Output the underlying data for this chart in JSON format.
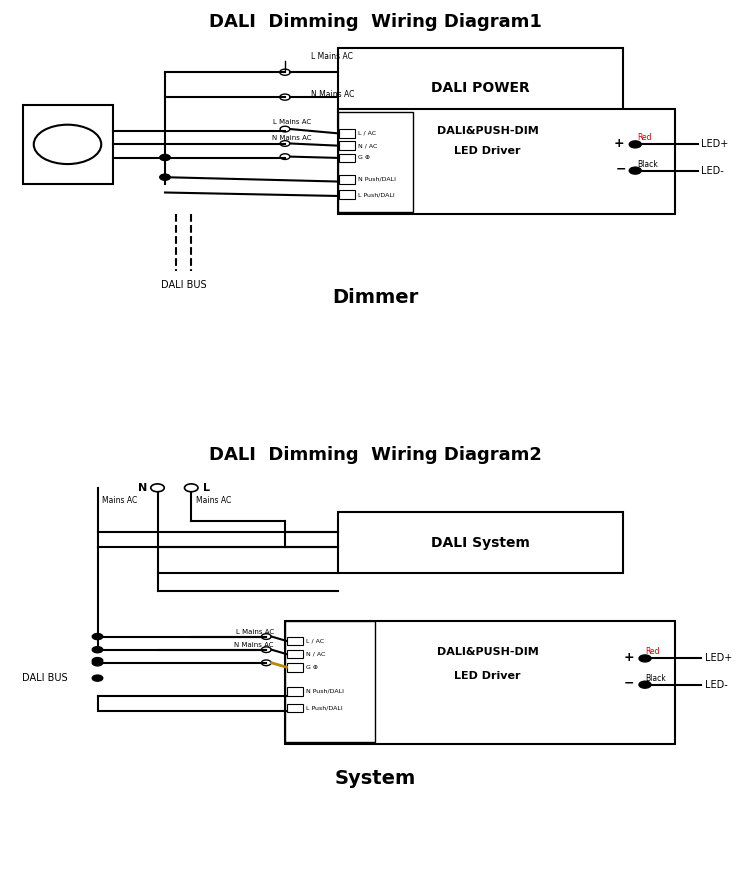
{
  "title1": "DALI  Dimming  Wiring Diagram1",
  "title2": "DALI  Dimming  Wiring Diagram2",
  "subtitle1": "Dimmer",
  "subtitle2": "System",
  "bg_color": "#ffffff",
  "line_color": "#000000",
  "box_color": "#000000",
  "red_color": "#cc0000",
  "gold_color": "#b8860b",
  "dali_bus_label": "DALI BUS",
  "led_plus": "LED+",
  "led_minus": "LED-"
}
